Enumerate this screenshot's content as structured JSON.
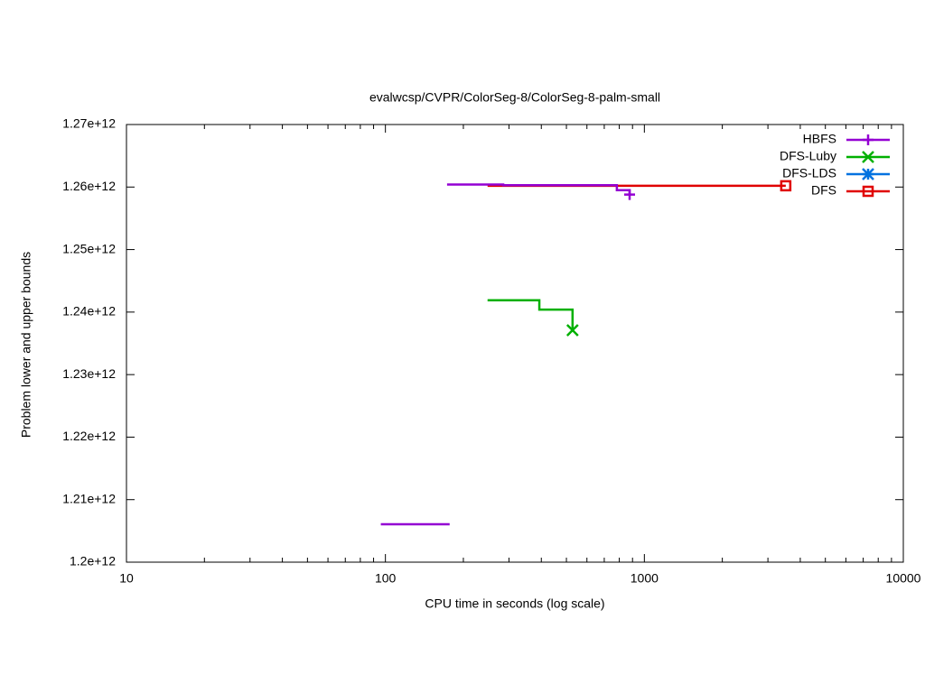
{
  "chart_data": {
    "type": "line",
    "title": "evalwcsp/CVPR/ColorSeg-8/ColorSeg-8-palm-small",
    "x_label": "CPU time in seconds (log scale)",
    "y_label": "Problem lower and upper bounds",
    "xscale": "log",
    "xlim": [
      10,
      10000
    ],
    "xticks": [
      10,
      100,
      1000,
      10000
    ],
    "ylim": [
      1200000000000.0,
      1270000000000.0
    ],
    "yticks": [
      {
        "value": 1200000000000.0,
        "label": "1.2e+12"
      },
      {
        "value": 1210000000000.0,
        "label": "1.21e+12"
      },
      {
        "value": 1220000000000.0,
        "label": "1.22e+12"
      },
      {
        "value": 1230000000000.0,
        "label": "1.23e+12"
      },
      {
        "value": 1240000000000.0,
        "label": "1.24e+12"
      },
      {
        "value": 1250000000000.0,
        "label": "1.25e+12"
      },
      {
        "value": 1260000000000.0,
        "label": "1.26e+12"
      },
      {
        "value": 1270000000000.0,
        "label": "1.27e+12"
      }
    ],
    "legend": "top-right",
    "series": [
      {
        "name": "HBFS",
        "color": "#9400d3",
        "marker": "plus",
        "x": [
          96,
          177,
          null,
          173,
          285,
          285,
          783,
          783,
          877,
          877
        ],
        "y": [
          1206060000000.0,
          1206060000000.0,
          null,
          1260400000000.0,
          1260400000000.0,
          1260300000000.0,
          1260300000000.0,
          1259500000000.0,
          1259500000000.0,
          1258800000000.0
        ]
      },
      {
        "name": "DFS-Luby",
        "color": "#00b000",
        "marker": "cross",
        "x": [
          248,
          393,
          393,
          528,
          528
        ],
        "y": [
          1241900000000.0,
          1241900000000.0,
          1240400000000.0,
          1240400000000.0,
          1237100000000.0
        ]
      },
      {
        "name": "DFS-LDS",
        "color": "#0072e0",
        "marker": "star",
        "x": [],
        "y": []
      },
      {
        "name": "DFS",
        "color": "#e00000",
        "marker": "square",
        "x": [
          248,
          3516
        ],
        "y": [
          1260200000000.0,
          1260200000000.0
        ]
      }
    ]
  }
}
